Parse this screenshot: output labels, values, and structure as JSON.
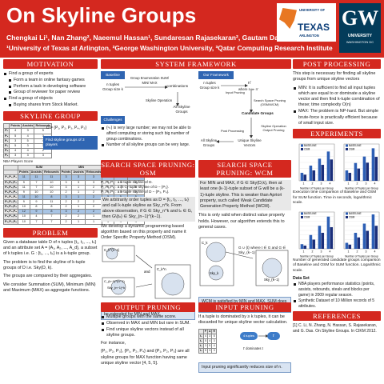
{
  "header": {
    "title": "On Skyline Groups",
    "authors": "Chengkai Li¹, Nan Zhang², Naeemul Hassan¹, Sundaresan Rajasekaran², Gautam Das¹,³",
    "affiliations": "¹University of Texas at Arlington, ²George Washington University, ³Qatar Computing Research Institute",
    "logo_uta": {
      "line1": "UNIVERSITY OF",
      "line2": "TEXAS",
      "line3": "ARLINGTON"
    },
    "logo_gw": {
      "mark": "GW",
      "line1": "THE GEORGE WASHINGTON",
      "line2": "UNIVERSITY",
      "line3": "WASHINGTON DC"
    }
  },
  "motivation": {
    "title": "Motivation",
    "items": [
      {
        "text": "Find a group of experts",
        "level": 0
      },
      {
        "text": "Form a team in online fantasy games",
        "level": 1
      },
      {
        "text": "Perform a task in developing software",
        "level": 1
      },
      {
        "text": "Group of reviewer for paper review",
        "level": 1
      },
      {
        "text": "Find a group of objects",
        "level": 0
      },
      {
        "text": "Buying shares from Stock Market.",
        "level": 1
      }
    ]
  },
  "skyline_group": {
    "title": "Skyline Group",
    "small_table": {
      "headers": [
        "",
        "Points",
        "Assists",
        "Rebounds"
      ],
      "rows": [
        [
          "P₁",
          "4",
          "3",
          "5"
        ],
        [
          "P₂",
          "5",
          "4",
          "3"
        ],
        [
          "P₃",
          "3",
          "5",
          "4"
        ],
        [
          "P₄",
          "5",
          "3",
          "3"
        ],
        [
          "P₅",
          "4",
          "4",
          "2"
        ],
        [
          "P₆",
          "3",
          "3",
          "3"
        ]
      ]
    },
    "group_label": "D = {P₁, P₂, P₃, P₄, P₅}",
    "find_label": "Find skyline groups of 3 players",
    "table_caption": "NBA Players Score",
    "big_table": {
      "group_headers": [
        "",
        "SUM",
        "MIN",
        "MAX"
      ],
      "sub_headers": [
        "",
        "Points",
        "Assists",
        "Rebounds",
        "Points",
        "Assists",
        "Rebounds",
        "Points",
        "Assists",
        "Rebounds"
      ],
      "rows": [
        [
          "P₁,P₂,P₃",
          "11",
          "11",
          "11",
          "3",
          "3",
          "3",
          "5",
          "5",
          "5"
        ],
        [
          "P₁,P₂,P₄",
          "9",
          "7",
          "10",
          "3",
          "3",
          "3",
          "5",
          "5",
          "5"
        ],
        [
          "P₁,P₂,P₅",
          "11",
          "7",
          "10",
          "3",
          "1",
          "2",
          "6",
          "3",
          "5"
        ],
        [
          "P₁,P₃,P₄",
          "9",
          "10",
          "10",
          "2",
          "1",
          "2",
          "6",
          "5",
          "5"
        ],
        [
          "P₁,P₃,P₅",
          "11",
          "10",
          "8",
          "3",
          "1",
          "2",
          "5",
          "5",
          "5"
        ],
        [
          "P₁,P₄,P₅",
          "9",
          "9",
          "11",
          "2",
          "2",
          "2",
          "5",
          "5",
          "5"
        ],
        [
          "P₂,P₃,P₄",
          "10",
          "8",
          "8",
          "2",
          "1",
          "2",
          "4",
          "5",
          "3"
        ],
        [
          "P₂,P₃,P₅",
          "12",
          "9",
          "8",
          "3",
          "2",
          "2",
          "5",
          "5",
          "3"
        ],
        [
          "P₂,P₄,P₅",
          "10",
          "4",
          "7",
          "2",
          "2",
          "1",
          "4",
          "3",
          "4"
        ],
        [
          "P₃,P₄,P₅",
          "10",
          "7",
          "7",
          "2",
          "1",
          "1",
          "5",
          "4",
          "4"
        ]
      ]
    }
  },
  "problem": {
    "title": "Problem",
    "p1": "Given a database table D of n tuples {t₁, t₂, ..., tₙ} and an attribute set A = {A₁, A₂, ..., A_d}, a subset of k tuples i.e. G : {t₁, ..., tₖ} is a k-tuple group.",
    "p2": "The problem is to find the skyline of k-tuple groups of D i.e. Sky(D, k).",
    "p3": "The groups are compared by their aggregates.",
    "p4": "We consider Summation (SUM), Minimum (MIN) and Maximum (MAX) as aggregate functions."
  },
  "framework": {
    "title": "System Framework",
    "baseline_label": "Baseline",
    "ntuples": "n tuples",
    "groupsize": "Group size k",
    "enum_label": "Group Enumeration SUM/ MIN/ MAX",
    "combinations": "combinations",
    "skyline_op": "Skyline Operation",
    "all_groups": "All Skyline Groups",
    "challenges_label": "Challenges",
    "challenges": [
      "(ⁿₖ) is very large number; we may not be able to afford computing or storing such big number of group combinations.",
      "Number of all skyline groups can be very large."
    ],
    "ours_label": "Our Framework",
    "input_pruning": "Input Pruning",
    "where": "where n ≫ n'",
    "sso": "Search Space Pruning (OSM/WCM)",
    "candidate": "Candidate Groups",
    "post": "Post Processing",
    "unique": "Unique Skyline Vectors",
    "all_groups2": "All Skyline Groups",
    "n_tuples2": "n tuples",
    "group_size2": "Group size k",
    "nprime": "n'",
    "skyline_op2": "Skyline Operation Output Pruning"
  },
  "osm": {
    "title": "Search Space Pruning: OSM",
    "lines": [
      "P₁,P₂,P₃ : a k-tuple skyline of D.",
      "P₁,P₂,P₄ : a (k-1)-tuple skyline of D − {P₃}.",
      "P₁,P₂,P₅ : a k-tuple skyline of D − {P₃, P₄}."
    ],
    "p1": "We arbitrarily order tuples as D = {t₁, t₂, ..., tₙ} and call k-tuple skyline as Sky_n^k. From above observation, if G ∈ Sky_n^k and tₙ ∈ G, then G\\{tₙ} ∈ Sky_(n−1)^(k−1).",
    "p2": "We develop a dynamic programming based algorithm based on this property and name it Order Specific Property Method (OSM).",
    "caption": "This property is satisfied by SUM and also can be extended for MIN and MAX.",
    "and": "and",
    "nodes": [
      "C_k^(n−1)",
      "C_k^n",
      "Sky_(n−1)^k",
      "C_(k−1)^(n−1)"
    ]
  },
  "wcm": {
    "title": "Search Space Pruning: WCM",
    "p1": "For MIN and MAX, if G ∈ Sky(D,k), then at least one (k-1)-tuple subset of G will be a (k-1)-tuple skyline. This is weaker than Apriori property, such called Weak Candidate Generation Property Method (WCM).",
    "p2": "This is only valid when distinct value property holds. However, our algorithm extends this to general cases.",
    "formula": "G ∪ {t} where t ∈ G and G ∈ Sky_(k−1)",
    "caption": "WCM is satisfied by MIN and MAX. SUM does not satisfy this property.",
    "nodes": [
      "C_k",
      "Sky_k",
      "Sky_(k−1)"
    ]
  },
  "output_pruning": {
    "title": "Output Pruning",
    "items": [
      "Multiple groups with the same score.",
      "Observed in MAX and MIN but rare in SUM.",
      "Find unique skyline vectors instead of all skyline groups."
    ],
    "p1": "For instance,",
    "p2": "{P₁, P₂, P₃}, {P₁, P₂, P₄} and {P₁, P₂, P₅} are all skyline groups for MAX function having same unique skyline vector [4, 5, 5]."
  },
  "input_pruning": {
    "title": "Input Pruning",
    "p1": "If a tuple is dominated by ≥ k tuples, it can be discarded for unique skyline vector calculation.",
    "tuple_a": "4 tuples",
    "tuple_b": "t′",
    "dominates": "t′ dominates t",
    "note": "Input pruning significantly reduces size of n."
  },
  "post_processing": {
    "title": "Post Processing",
    "p1": "This step is necessary for finding all skyline groups from unique skyline vectors",
    "items": [
      "MIN: It is sufficient to find all input tuples which are equal to or dominate a skyline vector and then find k-tuple combination of these; time complexity O(n)",
      "MAX: The problem is NP-hard. But simple brute-force is practically efficient because of small input size."
    ]
  },
  "experiments": {
    "title": "Experiments",
    "caption1": "Execution time comparison of Baseline and OSM for SUM function. Time in seconds, logarithmic scale.",
    "caption2": "Number of generated candidate groups comparison of Baseline and OSM for SUM function. Logarithmic scale.",
    "dataset_label": "Data Set",
    "dataset_items": [
      "NBA players performance statistics (points, assists, rebounds, steals and blocks per game) in 2009 regular season.",
      "Synthetic Dataset of 10 Million records of 5 attributes."
    ]
  },
  "chart_data": [
    {
      "type": "bar",
      "title": "",
      "xlabel": "Number of Tuples per Group",
      "ylabel": "",
      "categories": [
        "1",
        "2",
        "3",
        "4"
      ],
      "series": [
        {
          "name": "BASELINE",
          "values": [
            0.02,
            0.3,
            4,
            60
          ]
        },
        {
          "name": "OSM",
          "values": [
            0.01,
            0.05,
            0.4,
            3
          ]
        }
      ],
      "ylim": [
        0.001,
        1000
      ],
      "log": true,
      "colors": [
        "#2d5fb5",
        "#1b2f7a"
      ]
    },
    {
      "type": "bar",
      "title": "",
      "xlabel": "Number of Tuples per Group",
      "ylabel": "",
      "categories": [
        "1",
        "2",
        "3",
        "4"
      ],
      "series": [
        {
          "name": "BASELINE",
          "values": [
            0.05,
            0.8,
            9,
            200
          ]
        },
        {
          "name": "OSM",
          "values": [
            0.02,
            0.1,
            0.9,
            8
          ]
        }
      ],
      "ylim": [
        0.001,
        1000
      ],
      "log": true,
      "colors": [
        "#2d5fb5",
        "#1b2f7a"
      ]
    },
    {
      "type": "bar",
      "title": "",
      "xlabel": "Number of Tuples per Group",
      "ylabel": "",
      "categories": [
        "1",
        "2",
        "3",
        "4"
      ],
      "series": [
        {
          "name": "BASELINE",
          "values": [
            100,
            10000,
            1000000,
            100000000
          ]
        },
        {
          "name": "OSM",
          "values": [
            50,
            1000,
            30000,
            500000
          ]
        }
      ],
      "ylim": [
        10,
        1000000000
      ],
      "log": true,
      "colors": [
        "#2d5fb5",
        "#1b2f7a"
      ]
    },
    {
      "type": "bar",
      "title": "",
      "xlabel": "Number of Tuples per Group",
      "ylabel": "",
      "categories": [
        "1",
        "2",
        "3",
        "4"
      ],
      "series": [
        {
          "name": "BASELINE",
          "values": [
            200,
            30000,
            3000000,
            300000000
          ]
        },
        {
          "name": "OSM",
          "values": [
            80,
            3000,
            80000,
            1000000
          ]
        }
      ],
      "ylim": [
        10,
        1000000000
      ],
      "log": true,
      "colors": [
        "#2d5fb5",
        "#1b2f7a"
      ]
    }
  ],
  "references": {
    "title": "References",
    "text": "[1] C. Li, N. Zhang, N. Hassan, S. Rajasekaran, and G. Das. On Skyline Groups. In CIKM 2012."
  }
}
